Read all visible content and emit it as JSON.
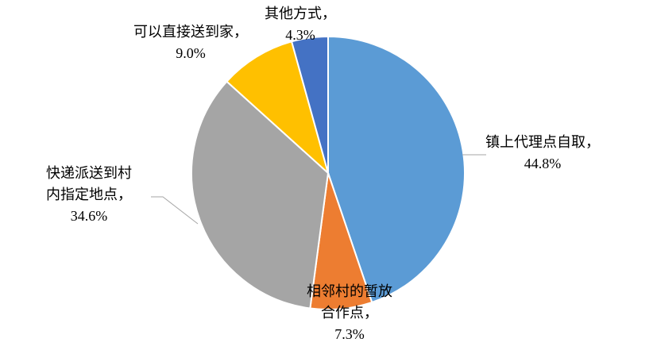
{
  "chart_data": {
    "type": "pie",
    "categories": [
      "镇上代理点自取，",
      "相邻村的暂放合作点，",
      "快递派送到村内指定地点，",
      "可以直接送到家，",
      "其他方式，"
    ],
    "values": [
      44.8,
      7.3,
      34.6,
      9.0,
      4.3
    ],
    "value_labels": [
      "44.8%",
      "7.3%",
      "34.6%",
      "9.0%",
      "4.3%"
    ],
    "colors": [
      "#5b9bd5",
      "#ed7d31",
      "#a5a5a5",
      "#ffc000",
      "#4472c4"
    ]
  }
}
